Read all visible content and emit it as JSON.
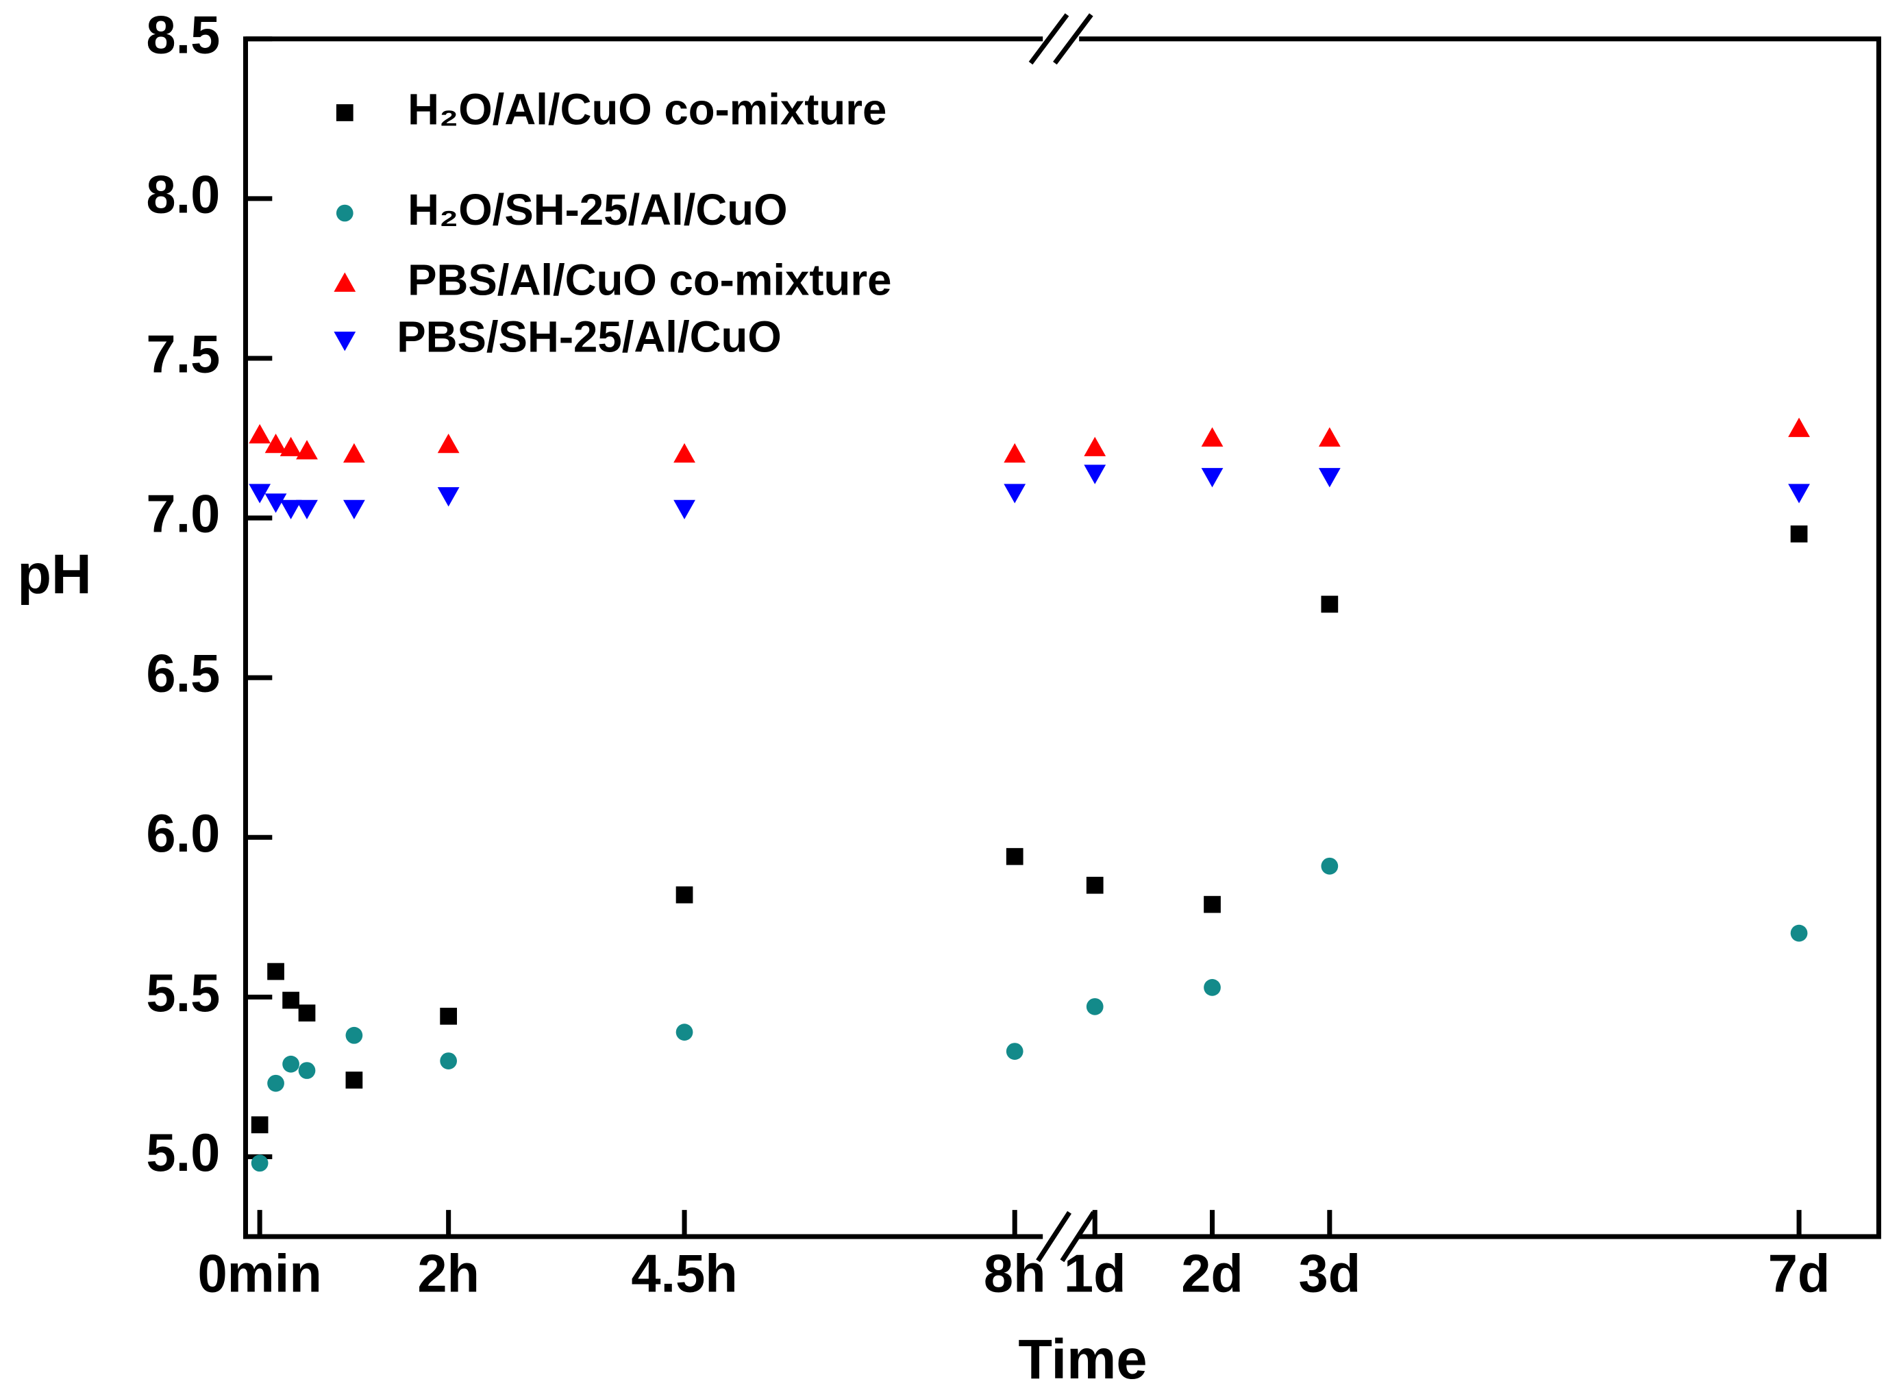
{
  "chart_data": {
    "type": "scatter",
    "x_label": "Time",
    "y_label": "pH",
    "x": [
      0,
      0.17,
      0.33,
      0.5,
      1,
      2,
      4.5,
      8,
      24,
      48,
      72,
      168
    ],
    "xlim": [
      [
        -0.15,
        8.4
      ],
      [
        17.8,
        184.3
      ]
    ],
    "xticks": [
      {
        "value": 0,
        "label": "0min"
      },
      {
        "value": 2,
        "label": "2h"
      },
      {
        "value": 4.5,
        "label": "4.5h"
      },
      {
        "value": 8,
        "label": "8h"
      },
      {
        "value": 24,
        "label": "1d"
      },
      {
        "value": 48,
        "label": "2d"
      },
      {
        "value": 72,
        "label": "3d"
      },
      {
        "value": 168,
        "label": "7d"
      }
    ],
    "ylim": [
      4.75,
      8.5
    ],
    "yticks": [
      {
        "value": 5,
        "label": "5.0"
      },
      {
        "value": 5.5,
        "label": "5.5"
      },
      {
        "value": 6,
        "label": "6.0"
      },
      {
        "value": 6.5,
        "label": "6.5"
      },
      {
        "value": 7,
        "label": "7.0"
      },
      {
        "value": 7.5,
        "label": "7.5"
      },
      {
        "value": 8,
        "label": "8.0"
      },
      {
        "value": 8.5,
        "label": "8.5"
      }
    ],
    "legend": "upper left",
    "series": [
      {
        "name": "H₂O/Al/CuO co-mixture",
        "color": "#000000",
        "marker": "square",
        "values": [
          5.1,
          5.58,
          5.49,
          5.45,
          5.24,
          5.44,
          5.82,
          5.94,
          5.85,
          5.79,
          6.73,
          6.95
        ]
      },
      {
        "name": "H₂O/SH-25/Al/CuO",
        "color": "#138a8a",
        "marker": "circle",
        "values": [
          4.98,
          5.23,
          5.29,
          5.27,
          5.38,
          5.3,
          5.39,
          5.33,
          5.47,
          5.53,
          5.91,
          5.7
        ]
      },
      {
        "name": "PBS/Al/CuO co-mixture",
        "color": "#ff0000",
        "marker": "triangle-up",
        "values": [
          7.26,
          7.23,
          7.22,
          7.21,
          7.2,
          7.23,
          7.2,
          7.2,
          7.22,
          7.25,
          7.25,
          7.28
        ]
      },
      {
        "name": "PBS/SH-25/Al/CuO",
        "color": "#0000ff",
        "marker": "triangle-down",
        "values": [
          7.08,
          7.05,
          7.03,
          7.03,
          7.03,
          7.07,
          7.03,
          7.08,
          7.14,
          7.13,
          7.13,
          7.08
        ]
      }
    ]
  }
}
